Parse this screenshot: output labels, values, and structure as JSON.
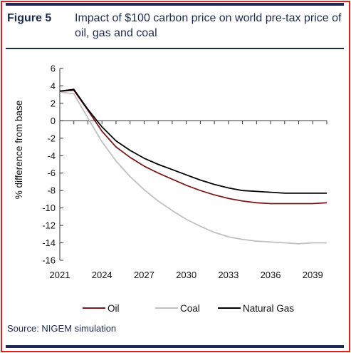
{
  "header": {
    "figure_label": "Figure 5",
    "title": "Impact of $100 carbon price on world pre-tax price of oil, gas and coal"
  },
  "footer": {
    "source": "Source: NIGEM simulation"
  },
  "colors": {
    "frame": "#e02020",
    "rules": "#1d2a4d",
    "text": "#1d2a4d"
  },
  "chart_data": {
    "type": "line",
    "title": "",
    "xlabel": "",
    "ylabel": "% difference from base",
    "xlim": [
      2021,
      2040
    ],
    "ylim": [
      -16,
      6
    ],
    "x_ticks": [
      2021,
      2024,
      2027,
      2030,
      2033,
      2036,
      2039
    ],
    "y_ticks": [
      6,
      4,
      2,
      0,
      -2,
      -4,
      -6,
      -8,
      -10,
      -12,
      -14,
      -16
    ],
    "grid": false,
    "legend_position": "bottom",
    "x": [
      2021,
      2022,
      2023,
      2024,
      2025,
      2026,
      2027,
      2028,
      2029,
      2030,
      2031,
      2032,
      2033,
      2034,
      2035,
      2036,
      2037,
      2038,
      2039,
      2040
    ],
    "series": [
      {
        "name": "Oil",
        "color": "#7a1a1a",
        "values": [
          3.4,
          3.5,
          1.2,
          -1.2,
          -3.0,
          -4.2,
          -5.2,
          -6.0,
          -6.7,
          -7.4,
          -8.0,
          -8.5,
          -8.9,
          -9.2,
          -9.4,
          -9.5,
          -9.5,
          -9.5,
          -9.5,
          -9.4
        ]
      },
      {
        "name": "Coal",
        "color": "#c0c0c0",
        "values": [
          3.3,
          3.1,
          0.3,
          -2.4,
          -4.6,
          -6.4,
          -7.9,
          -9.2,
          -10.3,
          -11.3,
          -12.1,
          -12.8,
          -13.3,
          -13.6,
          -13.8,
          -13.9,
          -14.0,
          -14.1,
          -14.0,
          -14.0
        ]
      },
      {
        "name": "Natural Gas",
        "color": "#000000",
        "values": [
          3.4,
          3.6,
          1.3,
          -0.7,
          -2.3,
          -3.4,
          -4.3,
          -5.0,
          -5.6,
          -6.2,
          -6.8,
          -7.3,
          -7.7,
          -8.0,
          -8.1,
          -8.2,
          -8.3,
          -8.3,
          -8.3,
          -8.3
        ]
      }
    ]
  }
}
